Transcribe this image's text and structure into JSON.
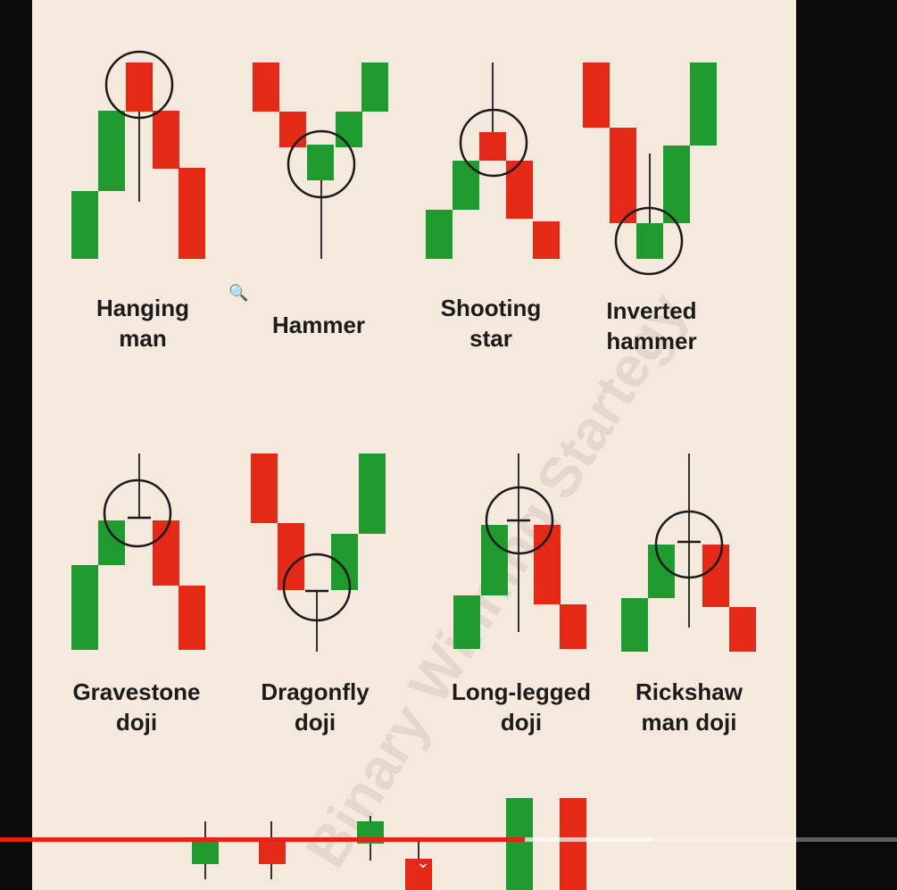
{
  "watermark": "Binary Winning Startegy",
  "patterns": [
    {
      "name_line1": "Hanging",
      "name_line2": "man"
    },
    {
      "name_line1": "Hammer",
      "name_line2": ""
    },
    {
      "name_line1": "Shooting",
      "name_line2": "star"
    },
    {
      "name_line1": "Inverted",
      "name_line2": "hammer"
    },
    {
      "name_line1": "Gravestone",
      "name_line2": "doji"
    },
    {
      "name_line1": "Dragonfly",
      "name_line2": "doji"
    },
    {
      "name_line1": "Long-legged",
      "name_line2": "doji"
    },
    {
      "name_line1": "Rickshaw",
      "name_line2": "man doji"
    }
  ],
  "colors": {
    "bullish": "#1e9a2e",
    "bearish": "#e42a17",
    "background": "#f5e8dc",
    "progress": "#e62117"
  },
  "player": {
    "progress_fraction": 0.585,
    "buffered_fraction": 0.727
  },
  "icons": {
    "zoom": "zoom-in-cursor-icon",
    "expand": "chevron-down-icon"
  }
}
